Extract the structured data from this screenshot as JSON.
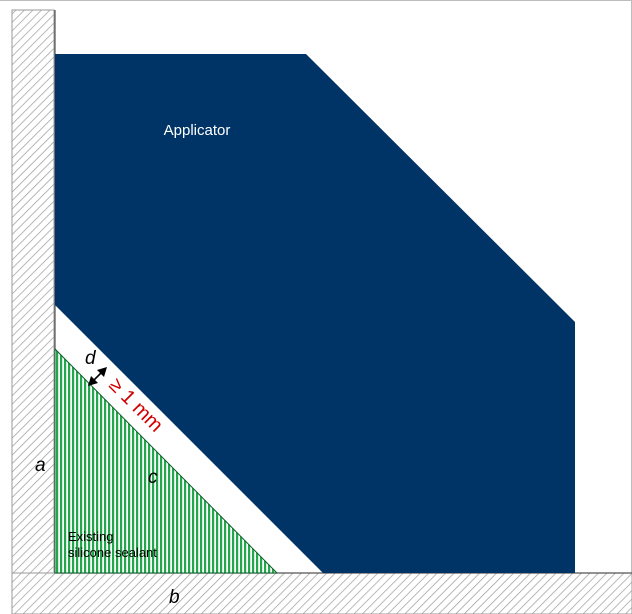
{
  "labels": {
    "applicator": "Applicator",
    "d": "d",
    "gap": "≥ 1 mm",
    "a": "a",
    "c": "c",
    "b": "b",
    "sealant_line1": "Existing",
    "sealant_line2": "silicone sealant"
  },
  "colors": {
    "applicator": "#003366",
    "sealant_fill": "#22a84a",
    "sealant_bg": "#ffffff",
    "hatch": "#9a9a9a",
    "gap_text": "#d00000"
  }
}
